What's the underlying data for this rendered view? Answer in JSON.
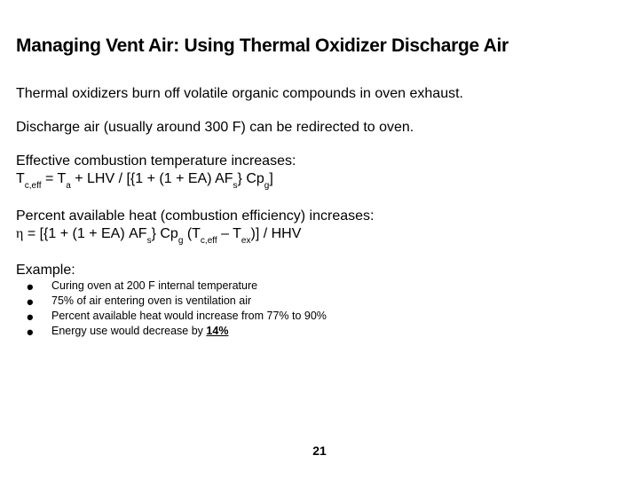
{
  "title": "Managing Vent Air: Using Thermal Oxidizer Discharge Air",
  "para1": "Thermal oxidizers burn off volatile organic compounds in oven exhaust.",
  "para2": "Discharge air (usually around 300 F) can be redirected to oven.",
  "block1": {
    "lead": "Effective combustion temperature increases:",
    "lhs_main": "T",
    "lhs_sub": "c,eff",
    "eq": " = T",
    "ta_sub": "a",
    "mid": " + LHV / [{1 + (1 + EA) AF",
    "af_sub": "s",
    "mid2": "} Cp",
    "cp_sub": "g",
    "tail": "]"
  },
  "block2": {
    "lead": "Percent available heat (combustion efficiency) increases:",
    "eta": "η",
    "eq": " = [{1 + (1 + EA) AF",
    "af_sub": "s",
    "mid": "} Cp",
    "cp_sub": "g",
    "mid2": " (T",
    "tc_sub": "c,eff",
    "mid3": " – T",
    "tex_sub": "ex",
    "tail": ")] / HHV"
  },
  "example": {
    "head": "Example:",
    "items": [
      {
        "text": "Curing oven at 200 F internal temperature"
      },
      {
        "text": "75% of air entering oven is ventilation air"
      },
      {
        "text": "Percent available heat would increase from 77% to 90%"
      },
      {
        "prefix": "Energy use would decrease by ",
        "emph": "14%"
      }
    ]
  },
  "pageNumber": "21",
  "colors": {
    "background": "#ffffff",
    "text": "#000000"
  }
}
